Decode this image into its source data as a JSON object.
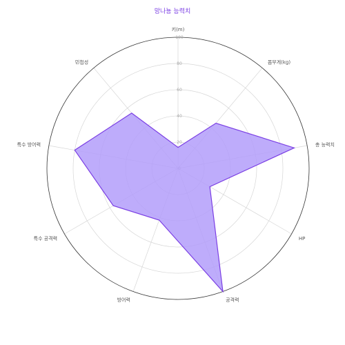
{
  "chart_data": {
    "type": "radar",
    "title": "망나뇽 능력치",
    "axes": [
      "키(m)",
      "몸무게(kg)",
      "총 능력치",
      "HP",
      "공격력",
      "방어력",
      "특수 공격력",
      "특수 방어력",
      "민첩성"
    ],
    "values": [
      16,
      45,
      90,
      28,
      100,
      42,
      57,
      80,
      55
    ],
    "rlim": [
      0,
      100
    ],
    "r_ticks": [
      0,
      20,
      40,
      60,
      80,
      100
    ],
    "grid": true,
    "colors": {
      "fill": "#b39dfa",
      "line": "#7b3fe4",
      "title": "#7b3fe4",
      "grid": "#d6d6d6",
      "outer": "#333333"
    }
  }
}
